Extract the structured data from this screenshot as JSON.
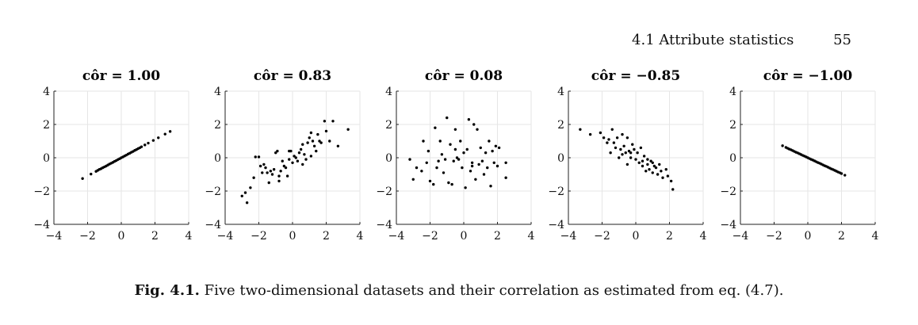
{
  "page_header": {
    "section": "4.1  Attribute statistics",
    "page_number": "55"
  },
  "caption": {
    "label": "Fig. 4.1.",
    "text": " Five two-dimensional datasets and their correlation as estimated from eq. (4.7)."
  },
  "chart_data": [
    {
      "type": "scatter",
      "title": "côr = 1.00",
      "xlim": [
        -4,
        4
      ],
      "ylim": [
        -4,
        4
      ],
      "xticks": [
        -4,
        -2,
        0,
        2,
        4
      ],
      "yticks": [
        -4,
        -2,
        0,
        2,
        4
      ],
      "tick_labels": [
        "−4",
        "−2",
        "0",
        "2",
        "4"
      ],
      "grid": true,
      "points": [
        [
          -2.3,
          -1.25
        ],
        [
          -1.8,
          -0.98
        ],
        [
          -1.5,
          -0.82
        ],
        [
          -1.4,
          -0.76
        ],
        [
          -1.3,
          -0.7
        ],
        [
          -1.2,
          -0.66
        ],
        [
          -1.1,
          -0.6
        ],
        [
          -1.0,
          -0.55
        ],
        [
          -0.9,
          -0.5
        ],
        [
          -0.8,
          -0.44
        ],
        [
          -0.7,
          -0.38
        ],
        [
          -0.6,
          -0.33
        ],
        [
          -0.5,
          -0.28
        ],
        [
          -0.4,
          -0.22
        ],
        [
          -0.3,
          -0.17
        ],
        [
          -0.2,
          -0.11
        ],
        [
          -0.1,
          -0.06
        ],
        [
          0.0,
          0.0
        ],
        [
          0.1,
          0.05
        ],
        [
          0.2,
          0.11
        ],
        [
          0.3,
          0.16
        ],
        [
          0.4,
          0.22
        ],
        [
          0.5,
          0.27
        ],
        [
          0.6,
          0.33
        ],
        [
          0.7,
          0.38
        ],
        [
          0.8,
          0.44
        ],
        [
          0.9,
          0.49
        ],
        [
          1.0,
          0.55
        ],
        [
          1.1,
          0.6
        ],
        [
          1.2,
          0.66
        ],
        [
          1.4,
          0.77
        ],
        [
          1.6,
          0.88
        ],
        [
          1.9,
          1.04
        ],
        [
          2.2,
          1.2
        ],
        [
          2.6,
          1.42
        ],
        [
          2.9,
          1.58
        ]
      ]
    },
    {
      "type": "scatter",
      "title": "côr = 0.83",
      "xlim": [
        -4,
        4
      ],
      "ylim": [
        -4,
        4
      ],
      "xticks": [
        -4,
        -2,
        0,
        2,
        4
      ],
      "yticks": [
        -4,
        -2,
        0,
        2,
        4
      ],
      "tick_labels": [
        "−4",
        "−2",
        "0",
        "2",
        "4"
      ],
      "grid": true,
      "points": [
        [
          -3.0,
          -2.3
        ],
        [
          -2.8,
          -2.1
        ],
        [
          -2.7,
          -2.7
        ],
        [
          -2.5,
          -1.8
        ],
        [
          -2.3,
          -1.2
        ],
        [
          -2.2,
          0.05
        ],
        [
          -2.0,
          0.05
        ],
        [
          -1.9,
          -0.5
        ],
        [
          -1.8,
          -0.9
        ],
        [
          -1.7,
          -0.4
        ],
        [
          -1.6,
          -0.6
        ],
        [
          -1.5,
          -0.9
        ],
        [
          -1.4,
          -1.5
        ],
        [
          -1.3,
          -0.8
        ],
        [
          -1.2,
          -1.0
        ],
        [
          -1.1,
          -0.7
        ],
        [
          -1.0,
          0.3
        ],
        [
          -0.9,
          0.4
        ],
        [
          -0.8,
          -1.1
        ],
        [
          -0.8,
          -1.4
        ],
        [
          -0.7,
          -0.8
        ],
        [
          -0.6,
          -0.2
        ],
        [
          -0.5,
          -0.5
        ],
        [
          -0.4,
          -0.6
        ],
        [
          -0.3,
          -1.1
        ],
        [
          -0.2,
          -0.1
        ],
        [
          -0.1,
          0.4
        ],
        [
          0.0,
          -0.3
        ],
        [
          0.1,
          0.1
        ],
        [
          0.2,
          0.0
        ],
        [
          0.3,
          -0.2
        ],
        [
          0.4,
          0.3
        ],
        [
          0.5,
          0.5
        ],
        [
          0.6,
          -0.4
        ],
        [
          0.7,
          0.2
        ],
        [
          0.8,
          -0.1
        ],
        [
          0.9,
          0.9
        ],
        [
          1.0,
          1.2
        ],
        [
          1.1,
          0.1
        ],
        [
          1.2,
          1.0
        ],
        [
          1.3,
          0.7
        ],
        [
          1.4,
          0.4
        ],
        [
          1.5,
          1.4
        ],
        [
          1.6,
          1.0
        ],
        [
          1.7,
          0.9
        ],
        [
          1.9,
          2.2
        ],
        [
          2.0,
          1.6
        ],
        [
          2.2,
          1.0
        ],
        [
          2.4,
          2.2
        ],
        [
          2.7,
          0.7
        ],
        [
          3.3,
          1.7
        ],
        [
          1.1,
          1.5
        ],
        [
          0.6,
          0.8
        ],
        [
          -0.2,
          0.4
        ]
      ]
    },
    {
      "type": "scatter",
      "title": "côr = 0.08",
      "xlim": [
        -4,
        4
      ],
      "ylim": [
        -4,
        4
      ],
      "xticks": [
        -4,
        -2,
        0,
        2,
        4
      ],
      "yticks": [
        -4,
        -2,
        0,
        2,
        4
      ],
      "tick_labels": [
        "−4",
        "−2",
        "0",
        "2",
        "4"
      ],
      "grid": true,
      "points": [
        [
          -3.2,
          -0.1
        ],
        [
          -3.0,
          -1.3
        ],
        [
          -2.8,
          -0.6
        ],
        [
          -2.5,
          -0.8
        ],
        [
          -2.4,
          1.0
        ],
        [
          -2.1,
          0.4
        ],
        [
          -2.0,
          -1.4
        ],
        [
          -1.8,
          -1.6
        ],
        [
          -1.7,
          1.8
        ],
        [
          -1.6,
          -0.6
        ],
        [
          -1.5,
          -0.2
        ],
        [
          -1.4,
          1.0
        ],
        [
          -1.3,
          0.2
        ],
        [
          -1.2,
          -0.9
        ],
        [
          -1.1,
          -0.1
        ],
        [
          -1.0,
          2.4
        ],
        [
          -0.9,
          -1.5
        ],
        [
          -0.8,
          0.8
        ],
        [
          -0.7,
          -1.6
        ],
        [
          -0.6,
          -0.2
        ],
        [
          -0.5,
          1.7
        ],
        [
          -0.4,
          0.0
        ],
        [
          -0.3,
          -0.1
        ],
        [
          -0.2,
          1.0
        ],
        [
          -0.1,
          -0.6
        ],
        [
          0.0,
          0.3
        ],
        [
          0.1,
          -1.8
        ],
        [
          0.2,
          0.5
        ],
        [
          0.3,
          2.3
        ],
        [
          0.4,
          -0.8
        ],
        [
          0.5,
          -0.3
        ],
        [
          0.6,
          2.0
        ],
        [
          0.7,
          -1.3
        ],
        [
          0.8,
          1.7
        ],
        [
          0.9,
          -0.4
        ],
        [
          1.0,
          0.6
        ],
        [
          1.1,
          -0.2
        ],
        [
          1.2,
          -1.0
        ],
        [
          1.3,
          0.3
        ],
        [
          1.4,
          -0.6
        ],
        [
          1.5,
          1.0
        ],
        [
          1.6,
          -1.7
        ],
        [
          1.7,
          0.4
        ],
        [
          1.8,
          -0.3
        ],
        [
          1.9,
          0.7
        ],
        [
          2.0,
          -0.5
        ],
        [
          2.1,
          0.6
        ],
        [
          2.5,
          -0.3
        ],
        [
          2.5,
          -1.2
        ],
        [
          -2.2,
          -0.3
        ],
        [
          -0.5,
          0.5
        ],
        [
          0.5,
          -0.5
        ]
      ]
    },
    {
      "type": "scatter",
      "title": "côr = −0.85",
      "xlim": [
        -4,
        4
      ],
      "ylim": [
        -4,
        4
      ],
      "xticks": [
        -4,
        -2,
        0,
        2,
        4
      ],
      "yticks": [
        -4,
        -2,
        0,
        2,
        4
      ],
      "tick_labels": [
        "−4",
        "−2",
        "0",
        "2",
        "4"
      ],
      "grid": true,
      "points": [
        [
          -3.3,
          1.7
        ],
        [
          -2.7,
          1.4
        ],
        [
          -2.1,
          1.5
        ],
        [
          -1.9,
          1.2
        ],
        [
          -1.7,
          0.9
        ],
        [
          -1.6,
          1.1
        ],
        [
          -1.5,
          0.3
        ],
        [
          -1.4,
          1.7
        ],
        [
          -1.3,
          0.9
        ],
        [
          -1.2,
          0.6
        ],
        [
          -1.1,
          1.2
        ],
        [
          -1.0,
          0.0
        ],
        [
          -0.9,
          0.5
        ],
        [
          -0.8,
          1.4
        ],
        [
          -0.8,
          0.2
        ],
        [
          -0.7,
          0.7
        ],
        [
          -0.6,
          0.3
        ],
        [
          -0.5,
          -0.4
        ],
        [
          -0.5,
          1.2
        ],
        [
          -0.4,
          0.4
        ],
        [
          -0.3,
          0.0
        ],
        [
          -0.2,
          0.8
        ],
        [
          -0.1,
          0.5
        ],
        [
          0.0,
          -0.1
        ],
        [
          0.1,
          0.3
        ],
        [
          0.2,
          -0.3
        ],
        [
          0.3,
          0.6
        ],
        [
          0.4,
          -0.5
        ],
        [
          0.5,
          0.1
        ],
        [
          0.6,
          -0.8
        ],
        [
          0.7,
          -0.4
        ],
        [
          0.8,
          -0.7
        ],
        [
          0.9,
          -0.2
        ],
        [
          1.0,
          -0.9
        ],
        [
          1.1,
          -0.5
        ],
        [
          1.2,
          -0.6
        ],
        [
          1.3,
          -1.0
        ],
        [
          1.4,
          -0.4
        ],
        [
          1.5,
          -0.8
        ],
        [
          1.6,
          -1.2
        ],
        [
          1.8,
          -0.7
        ],
        [
          1.9,
          -1.1
        ],
        [
          2.1,
          -1.4
        ],
        [
          2.2,
          -1.9
        ],
        [
          0.4,
          -0.2
        ],
        [
          -0.3,
          0.3
        ],
        [
          0.7,
          -0.1
        ],
        [
          1.0,
          -0.3
        ]
      ]
    },
    {
      "type": "scatter",
      "title": "côr = −1.00",
      "xlim": [
        -4,
        4
      ],
      "ylim": [
        -4,
        4
      ],
      "xticks": [
        -4,
        -2,
        0,
        2,
        4
      ],
      "yticks": [
        -4,
        -2,
        0,
        2,
        4
      ],
      "tick_labels": [
        "−4",
        "−2",
        "0",
        "2",
        "4"
      ],
      "grid": true,
      "points": [
        [
          -1.5,
          0.72
        ],
        [
          -1.3,
          0.62
        ],
        [
          -1.2,
          0.57
        ],
        [
          -1.1,
          0.52
        ],
        [
          -1.0,
          0.48
        ],
        [
          -0.9,
          0.43
        ],
        [
          -0.8,
          0.38
        ],
        [
          -0.7,
          0.33
        ],
        [
          -0.6,
          0.29
        ],
        [
          -0.5,
          0.24
        ],
        [
          -0.4,
          0.19
        ],
        [
          -0.3,
          0.14
        ],
        [
          -0.2,
          0.1
        ],
        [
          -0.1,
          0.05
        ],
        [
          0.0,
          0.0
        ],
        [
          0.1,
          -0.05
        ],
        [
          0.2,
          -0.1
        ],
        [
          0.3,
          -0.14
        ],
        [
          0.4,
          -0.19
        ],
        [
          0.5,
          -0.24
        ],
        [
          0.6,
          -0.29
        ],
        [
          0.7,
          -0.33
        ],
        [
          0.8,
          -0.38
        ],
        [
          0.9,
          -0.43
        ],
        [
          1.0,
          -0.48
        ],
        [
          1.1,
          -0.52
        ],
        [
          1.2,
          -0.57
        ],
        [
          1.3,
          -0.62
        ],
        [
          1.4,
          -0.67
        ],
        [
          1.5,
          -0.71
        ],
        [
          1.6,
          -0.76
        ],
        [
          1.7,
          -0.81
        ],
        [
          1.8,
          -0.86
        ],
        [
          1.9,
          -0.9
        ],
        [
          2.0,
          -0.95
        ],
        [
          2.2,
          -1.05
        ]
      ]
    }
  ]
}
